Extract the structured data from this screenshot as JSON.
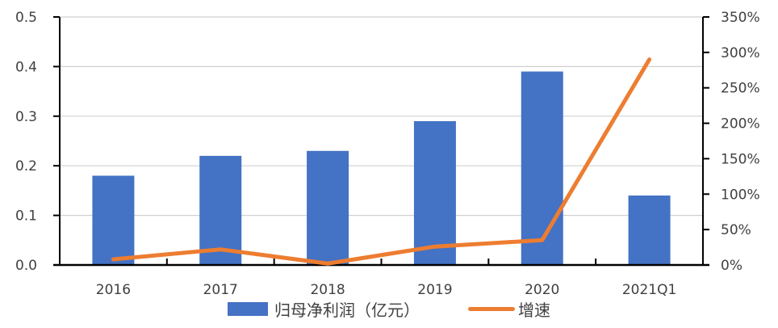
{
  "chart_data": {
    "type": "bar+line",
    "title": "",
    "categories": [
      "2016",
      "2017",
      "2018",
      "2019",
      "2020",
      "2021Q1"
    ],
    "series": [
      {
        "name": "归母净利润（亿元）",
        "type": "bar",
        "axis": "left",
        "color": "#4472C4",
        "values": [
          0.18,
          0.22,
          0.23,
          0.29,
          0.39,
          0.14
        ]
      },
      {
        "name": "增速",
        "type": "line",
        "axis": "right",
        "color": "#ED7D31",
        "values": [
          0.08,
          0.22,
          0.02,
          0.26,
          0.35,
          2.9
        ]
      }
    ],
    "left_axis": {
      "ylim": [
        0,
        0.5
      ],
      "ticks": [
        "0.0",
        "0.1",
        "0.2",
        "0.3",
        "0.4",
        "0.5"
      ]
    },
    "right_axis": {
      "ylim": [
        0,
        3.5
      ],
      "ticks": [
        "0%",
        "50%",
        "100%",
        "150%",
        "200%",
        "250%",
        "300%",
        "350%"
      ]
    },
    "xlabel": "",
    "ylabel": "",
    "grid": true,
    "legend_position": "bottom"
  },
  "legend": {
    "bar_label": "归母净利润（亿元）",
    "line_label": "增速"
  }
}
